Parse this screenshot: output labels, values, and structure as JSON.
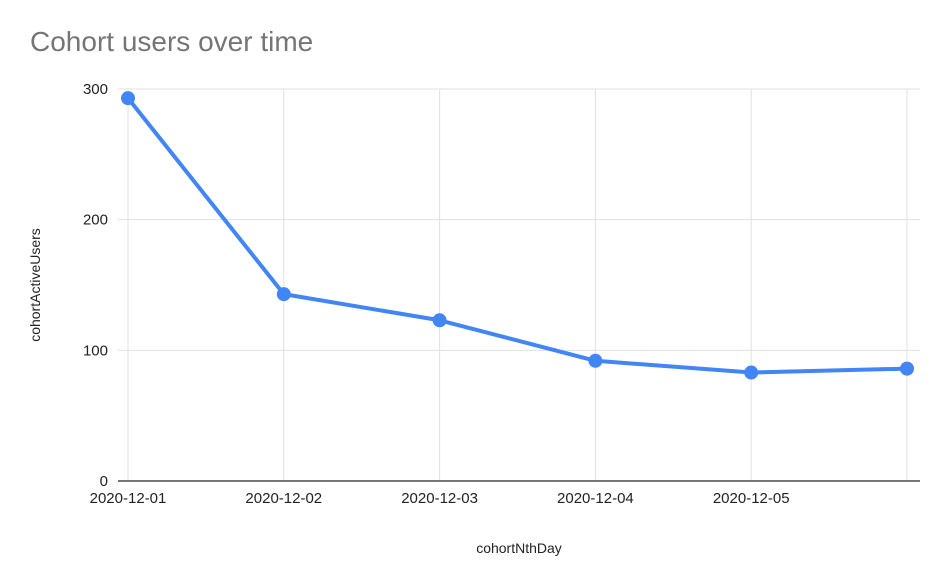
{
  "chart_data": {
    "type": "line",
    "title": "Cohort users over time",
    "xlabel": "cohortNthDay",
    "ylabel": "cohortActiveUsers",
    "x_labels": [
      "2020-12-01",
      "2020-12-02",
      "2020-12-03",
      "2020-12-04",
      "2020-12-05",
      ""
    ],
    "series": [
      {
        "name": "cohortActiveUsers",
        "values": [
          293,
          143,
          123,
          92,
          83,
          86
        ]
      }
    ],
    "y_ticks": [
      0,
      100,
      200,
      300
    ],
    "ylim": [
      0,
      300
    ],
    "grid": true,
    "legend": "none",
    "colors": {
      "line": "#4285f4",
      "point": "#4285f4",
      "grid": "#e0e0e0",
      "baseline": "#757575",
      "title": "#757575",
      "tick_label": "#222222",
      "background": "#ffffff"
    }
  }
}
